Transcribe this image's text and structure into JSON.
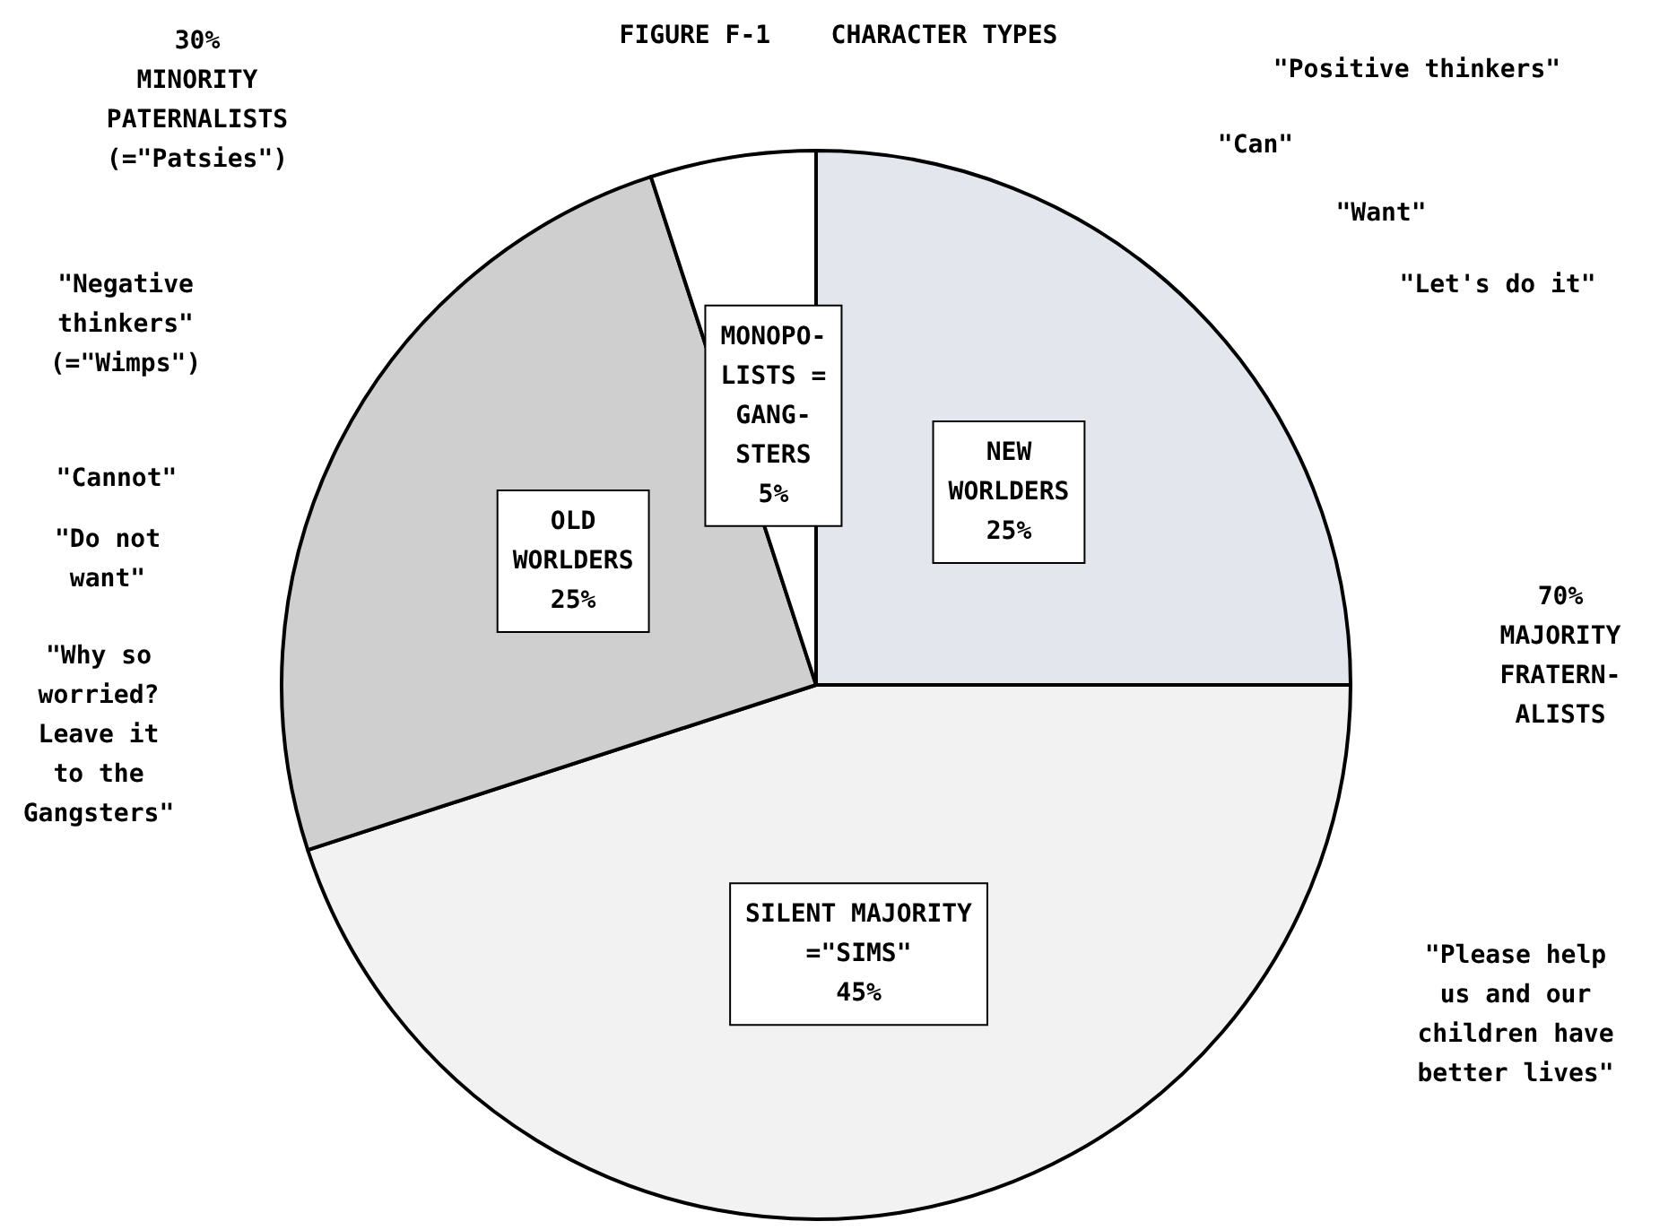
{
  "chart_data": {
    "type": "pie",
    "title": "FIGURE F-1    CHARACTER TYPES",
    "categories": [
      "NEW\nWORLDERS",
      "SILENT MAJORITY\n=\"SIMS\"",
      "OLD\nWORLDERS",
      "MONOPO-\nLISTS =\nGANG-\nSTERS"
    ],
    "values": [
      25,
      45,
      25,
      5
    ],
    "value_labels": [
      "25%",
      "45%",
      "25%",
      "5%"
    ],
    "colors": [
      "#e4e6ee",
      "#f2f2f2",
      "#cfcfcf",
      "#ffffff"
    ],
    "legend": false,
    "annotations": [
      "30%\nMINORITY\nPATERNALISTS\n(=\"Patsies\")",
      "\"Negative\nthinkers\"\n(=\"Wimps\")",
      "\"Cannot\"",
      "\"Do not\nwant\"",
      "\"Why so\nworried?\nLeave it\nto the\nGangsters\"",
      "\"Positive thinkers\"",
      "\"Can\"",
      "\"Want\"",
      "\"Let's do it\"",
      "70%\nMAJORITY\nFRATERN-\nALISTS",
      "\"Please help\nus and our\nchildren have\nbetter lives\""
    ]
  }
}
